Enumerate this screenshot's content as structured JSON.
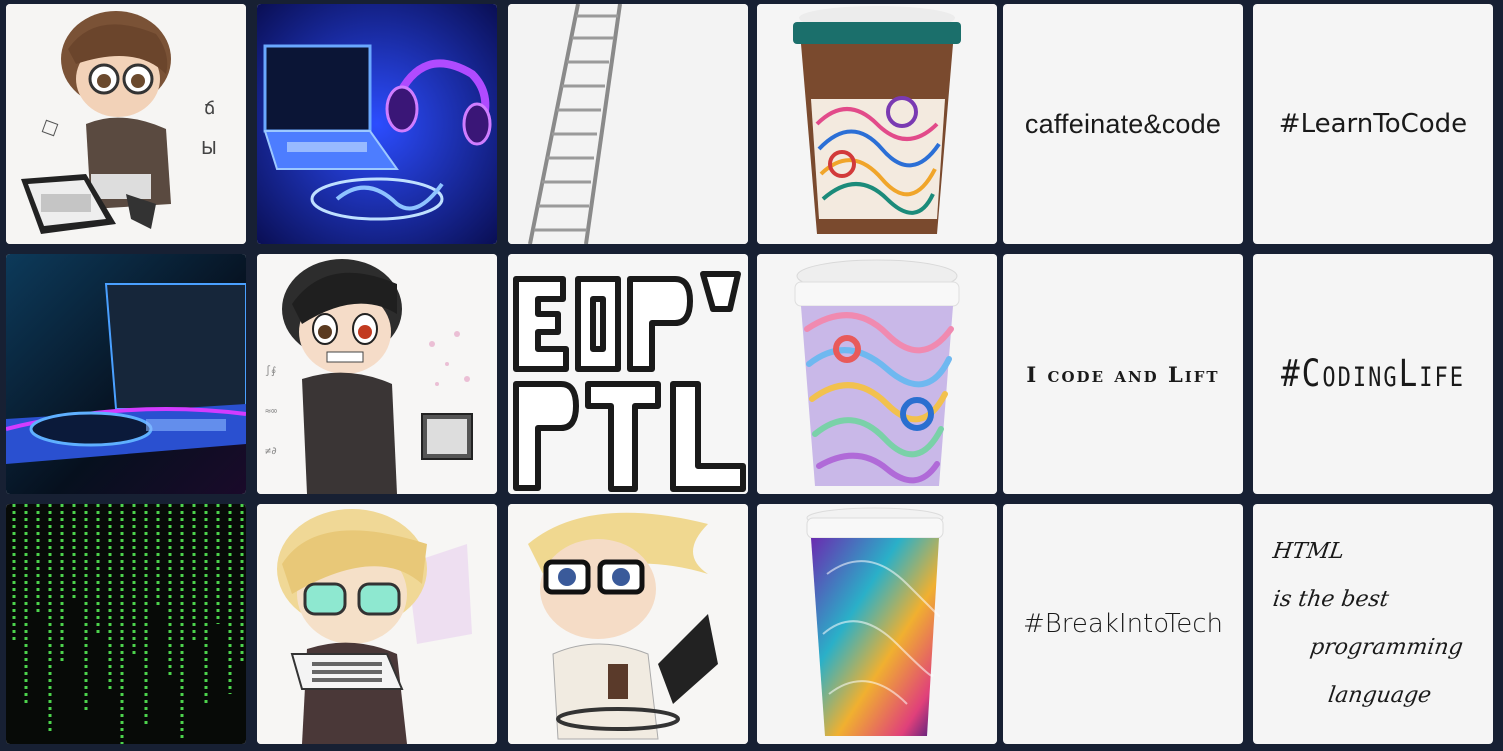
{
  "tiles": {
    "r1c5": "caffeinate&code",
    "r1c6": "#LearnToCode",
    "r2c5": "I code and Lift",
    "r2c6": "#CodingLife",
    "r3c5": "#BreakIntoTech",
    "r3c6": {
      "line1": "HTML",
      "line2": "is the best",
      "line3": "programming language"
    }
  },
  "images": [
    {
      "row": 1,
      "col": 1,
      "icon": "chibi-coder-laptop"
    },
    {
      "row": 1,
      "col": 2,
      "icon": "neon-laptop-headphones"
    },
    {
      "row": 1,
      "col": 3,
      "icon": "ladder"
    },
    {
      "row": 1,
      "col": 4,
      "icon": "brown-coffee-cup"
    },
    {
      "row": 2,
      "col": 1,
      "icon": "neon-laptop-dark"
    },
    {
      "row": 2,
      "col": 2,
      "icon": "chibi-coder-dark-hair"
    },
    {
      "row": 2,
      "col": 3,
      "icon": "block-letters-art"
    },
    {
      "row": 2,
      "col": 4,
      "icon": "swirl-coffee-cup"
    },
    {
      "row": 3,
      "col": 1,
      "icon": "matrix-code-rain"
    },
    {
      "row": 3,
      "col": 2,
      "icon": "chibi-blonde-keyboard"
    },
    {
      "row": 3,
      "col": 3,
      "icon": "chibi-glasses-laptop"
    },
    {
      "row": 3,
      "col": 4,
      "icon": "galaxy-coffee-cup"
    }
  ],
  "colors": {
    "background": "#172033",
    "tile": "#f5f5f5",
    "neon_blue": "#2f6bff",
    "matrix_green": "#4cd44c"
  }
}
